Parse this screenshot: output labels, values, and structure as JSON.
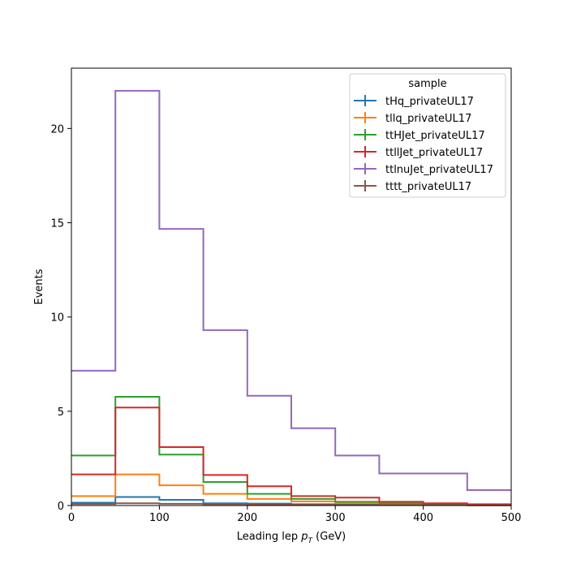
{
  "chart_data": {
    "type": "step-histogram",
    "xlabel_text": "Leading lep ",
    "xlabel_var": "p",
    "xlabel_sub": "T",
    "xlabel_unit": " (GeV)",
    "ylabel": "Events",
    "xlim": [
      0,
      500
    ],
    "ylim": [
      0,
      23.2
    ],
    "xticks": [
      0,
      100,
      200,
      300,
      400,
      500
    ],
    "yticks": [
      0,
      5,
      10,
      15,
      20
    ],
    "bin_edges": [
      0,
      50,
      100,
      150,
      200,
      250,
      300,
      350,
      400,
      450,
      500
    ],
    "legend_title": "sample",
    "legend_position": "top-right",
    "series": [
      {
        "name": "tHq_privateUL17",
        "color": "#1f77b4",
        "values": [
          0.15,
          0.45,
          0.3,
          0.12,
          0.1,
          0.07,
          0.05,
          0.04,
          0.03,
          0.02
        ]
      },
      {
        "name": "tllq_privateUL17",
        "color": "#ff7f0e",
        "values": [
          0.5,
          1.65,
          1.07,
          0.62,
          0.35,
          0.22,
          0.13,
          0.08,
          0.05,
          0.03
        ]
      },
      {
        "name": "ttHJet_privateUL17",
        "color": "#2ca02c",
        "values": [
          2.65,
          5.77,
          2.7,
          1.25,
          0.62,
          0.35,
          0.2,
          0.12,
          0.08,
          0.05
        ]
      },
      {
        "name": "ttllJet_privateUL17",
        "color": "#d62728",
        "values": [
          1.65,
          5.2,
          3.1,
          1.62,
          1.02,
          0.5,
          0.42,
          0.2,
          0.12,
          0.07
        ]
      },
      {
        "name": "ttlnuJet_privateUL17",
        "color": "#9467bd",
        "values": [
          7.15,
          22.0,
          14.67,
          9.3,
          5.82,
          4.1,
          2.65,
          1.7,
          1.7,
          0.82
        ]
      },
      {
        "name": "tttt_privateUL17",
        "color": "#8c564b",
        "values": [
          0.08,
          0.12,
          0.09,
          0.07,
          0.05,
          0.04,
          0.03,
          0.02,
          0.02,
          0.01
        ]
      }
    ]
  }
}
